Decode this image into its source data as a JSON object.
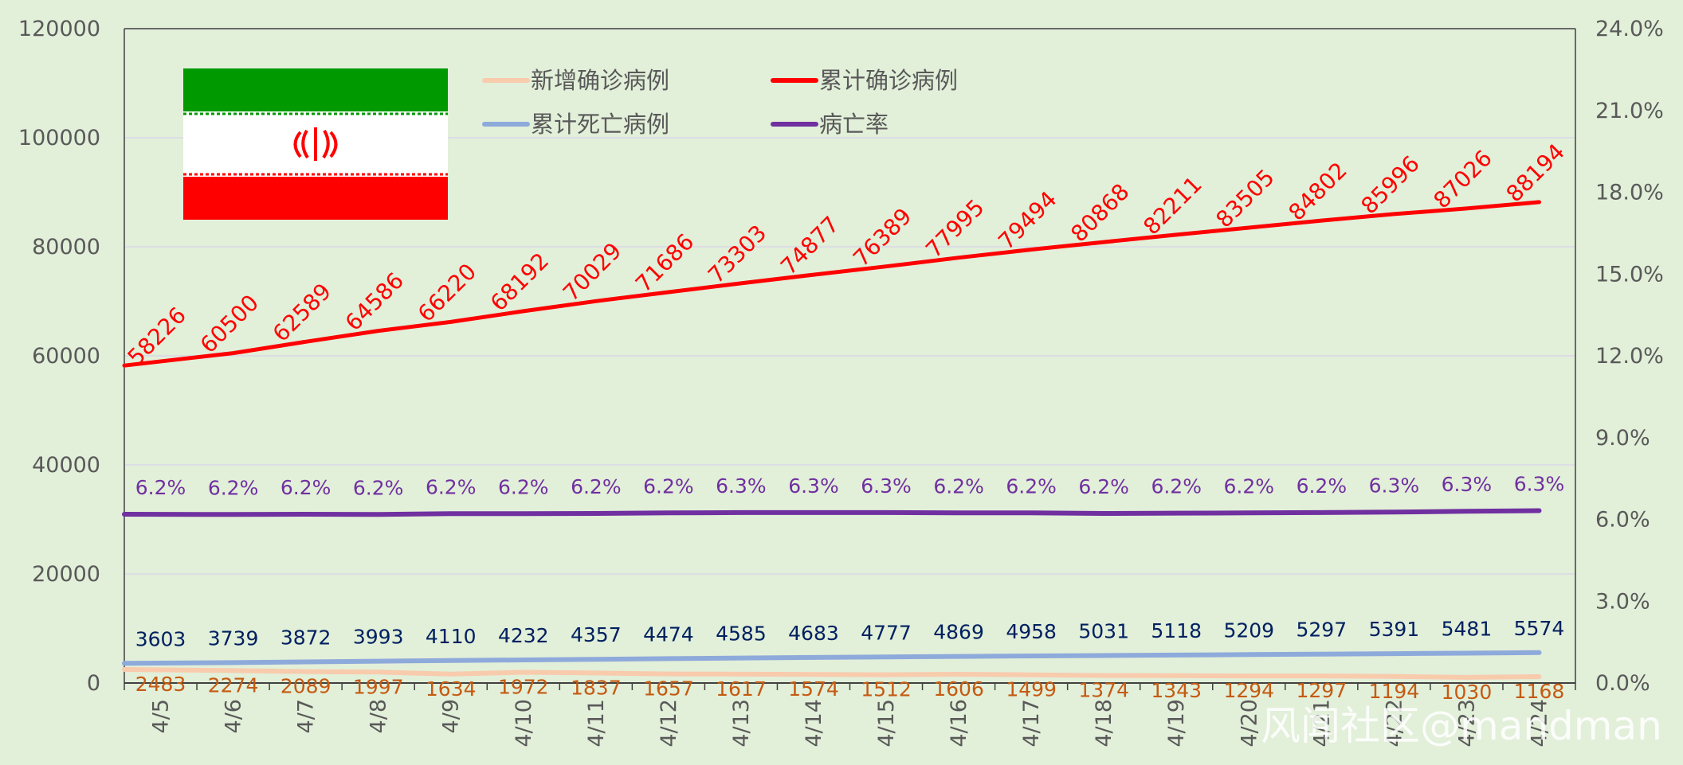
{
  "chart_data": {
    "type": "line",
    "categories": [
      "4/5",
      "4/6",
      "4/7",
      "4/8",
      "4/9",
      "4/10",
      "4/11",
      "4/12",
      "4/13",
      "4/14",
      "4/15",
      "4/16",
      "4/17",
      "4/18",
      "4/19",
      "4/20",
      "4/21",
      "4/22",
      "4/23",
      "4/24"
    ],
    "y_left": {
      "min": 0,
      "max": 120000,
      "ticks": [
        "0",
        "20000",
        "40000",
        "60000",
        "80000",
        "100000",
        "120000"
      ]
    },
    "y_right": {
      "min": 0,
      "max": 0.24,
      "ticks": [
        "0.0%",
        "3.0%",
        "6.0%",
        "9.0%",
        "12.0%",
        "15.0%",
        "18.0%",
        "21.0%",
        "24.0%"
      ]
    },
    "grid": true,
    "legend_position": "top",
    "series": [
      {
        "name": "新增确诊病例",
        "axis": "left",
        "color": "#f8cbad",
        "values": [
          2483,
          2274,
          2089,
          1997,
          1634,
          1972,
          1837,
          1657,
          1617,
          1574,
          1512,
          1606,
          1499,
          1374,
          1343,
          1294,
          1297,
          1194,
          1030,
          1168
        ],
        "labels": [
          "2483",
          "2274",
          "2089",
          "1997",
          "1634",
          "1972",
          "1837",
          "1657",
          "1617",
          "1574",
          "1512",
          "1606",
          "1499",
          "1374",
          "1343",
          "1294",
          "1297",
          "1194",
          "1030",
          "1168"
        ]
      },
      {
        "name": "累计确诊病例",
        "axis": "left",
        "color": "#ff0000",
        "values": [
          58226,
          60500,
          62589,
          64586,
          66220,
          68192,
          70029,
          71686,
          73303,
          74877,
          76389,
          77995,
          79494,
          80868,
          82211,
          83505,
          84802,
          85996,
          87026,
          88194
        ],
        "labels": [
          "58226",
          "60500",
          "62589",
          "64586",
          "66220",
          "68192",
          "70029",
          "71686",
          "73303",
          "74877",
          "76389",
          "77995",
          "79494",
          "80868",
          "82211",
          "83505",
          "84802",
          "85996",
          "87026",
          "88194"
        ]
      },
      {
        "name": "累计死亡病例",
        "axis": "left",
        "color": "#8eaadb",
        "values": [
          3603,
          3739,
          3872,
          3993,
          4110,
          4232,
          4357,
          4474,
          4585,
          4683,
          4777,
          4869,
          4958,
          5031,
          5118,
          5209,
          5297,
          5391,
          5481,
          5574
        ],
        "labels": [
          "3603",
          "3739",
          "3872",
          "3993",
          "4110",
          "4232",
          "4357",
          "4474",
          "4585",
          "4683",
          "4777",
          "4869",
          "4958",
          "5031",
          "5118",
          "5209",
          "5297",
          "5391",
          "5481",
          "5574"
        ]
      },
      {
        "name": "病亡率",
        "axis": "right",
        "color": "#7030a0",
        "values": [
          0.0619,
          0.0618,
          0.0619,
          0.0618,
          0.0621,
          0.0621,
          0.0622,
          0.0624,
          0.0625,
          0.0625,
          0.0625,
          0.0624,
          0.0624,
          0.0622,
          0.0623,
          0.0624,
          0.0625,
          0.0627,
          0.063,
          0.0632
        ],
        "labels": [
          "6.2%",
          "6.2%",
          "6.2%",
          "6.2%",
          "6.2%",
          "6.2%",
          "6.2%",
          "6.2%",
          "6.3%",
          "6.3%",
          "6.3%",
          "6.2%",
          "6.2%",
          "6.2%",
          "6.2%",
          "6.2%",
          "6.2%",
          "6.3%",
          "6.3%",
          "6.3%"
        ]
      }
    ]
  },
  "colors": {
    "background": "#e2efd9",
    "grid": "#d9d9e8",
    "axis": "#404040"
  },
  "flag": {
    "icon": "iran-flag-icon"
  },
  "watermark": {
    "text": "风闻社区@mandman"
  }
}
